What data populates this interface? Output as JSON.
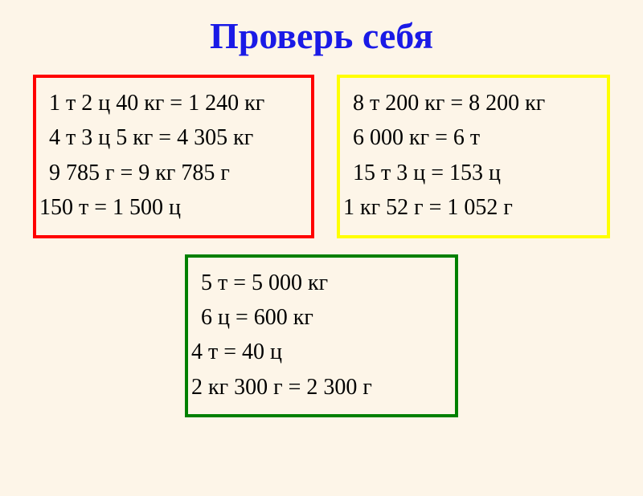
{
  "title": {
    "text": "Проверь себя",
    "color": "#1a1ae6"
  },
  "background_color": "#fdf5e8",
  "text_color": "#000000",
  "boxes": {
    "left": {
      "border_color": "#ff0000",
      "lines": [
        "1 т 2 ц 40 кг = 1 240 кг",
        "4 т 3 ц 5 кг = 4 305 кг",
        "9 785 г = 9 кг 785 г",
        "150 т = 1 500 ц"
      ]
    },
    "right": {
      "border_color": "#ffff00",
      "lines": [
        "8 т 200 кг = 8 200 кг",
        "6 000 кг = 6 т",
        "15 т 3 ц = 153 ц",
        "1 кг 52 г = 1 052 г"
      ]
    },
    "bottom": {
      "border_color": "#008000",
      "lines": [
        "5 т = 5 000 кг",
        "6 ц = 600 кг",
        "4 т = 40 ц",
        "2 кг 300 г = 2 300 г"
      ]
    }
  },
  "font_family": "Times New Roman, serif",
  "title_fontsize": 46,
  "line_fontsize": 28
}
